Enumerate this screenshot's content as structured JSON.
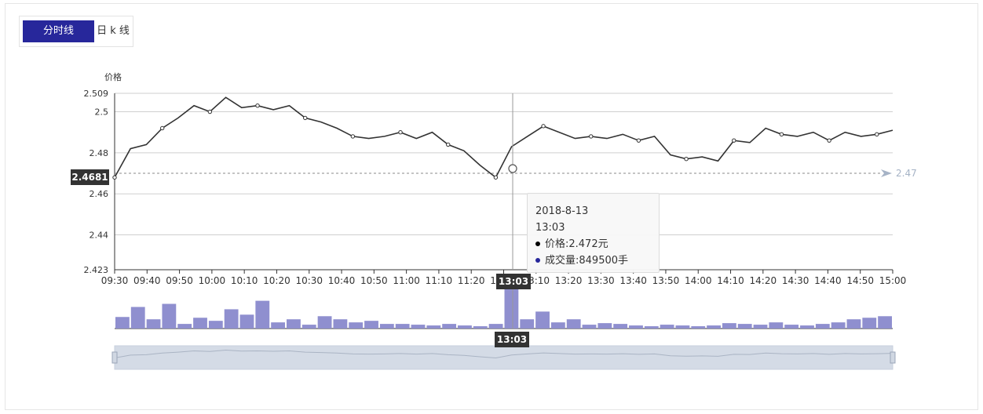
{
  "tabs": [
    {
      "label": "分时线",
      "active": true
    },
    {
      "label": "日 k 线",
      "active": false
    }
  ],
  "colors": {
    "accent": "#27279b",
    "line": "#333333",
    "volume": "#8f8fcf",
    "mark_line": "#a6b3c6",
    "zoom_fill": "#d4dbe6"
  },
  "tooltip": {
    "date": "2018-8-13",
    "time": "13:03",
    "price_label": "价格:2.472元",
    "volume_label": "成交量:849500手",
    "price_dot_color": "#000000",
    "volume_dot_color": "#27279b"
  },
  "axis_pointer": {
    "x_label": "13:03",
    "y_label": "2.4681"
  },
  "chart_data": {
    "type": "line",
    "ylabel": "价格",
    "y_ticks": [
      "2.509",
      "2.5",
      "2.48",
      "2.46",
      "2.44",
      "2.423"
    ],
    "ylim": [
      2.423,
      2.509
    ],
    "x_ticks": [
      "09:30",
      "09:40",
      "09:50",
      "10:00",
      "10:10",
      "10:20",
      "10:30",
      "10:40",
      "10:50",
      "11:00",
      "11:10",
      "11:20",
      "13:00",
      "13:10",
      "13:20",
      "13:30",
      "13:40",
      "13:50",
      "14:00",
      "14:10",
      "14:20",
      "14:30",
      "14:40",
      "14:50",
      "15:00"
    ],
    "mark_line": {
      "value": 2.47,
      "label": "2.47"
    },
    "grid": true,
    "series": [
      {
        "type": "line",
        "x": [
          "09:30",
          "09:35",
          "09:40",
          "09:45",
          "09:50",
          "09:55",
          "10:00",
          "10:05",
          "10:10",
          "10:15",
          "10:20",
          "10:25",
          "10:30",
          "10:35",
          "10:40",
          "10:45",
          "10:50",
          "10:55",
          "11:00",
          "11:05",
          "11:10",
          "11:15",
          "11:20",
          "11:25",
          "11:30",
          "13:00",
          "13:05",
          "13:10",
          "13:15",
          "13:20",
          "13:25",
          "13:30",
          "13:35",
          "13:40",
          "13:45",
          "13:50",
          "13:55",
          "14:00",
          "14:05",
          "14:10",
          "14:15",
          "14:20",
          "14:25",
          "14:30",
          "14:35",
          "14:40",
          "14:45",
          "14:50",
          "14:55",
          "15:00"
        ],
        "values": [
          2.468,
          2.482,
          2.484,
          2.492,
          2.497,
          2.503,
          2.5,
          2.507,
          2.502,
          2.503,
          2.501,
          2.503,
          2.497,
          2.495,
          2.492,
          2.488,
          2.487,
          2.488,
          2.49,
          2.487,
          2.49,
          2.484,
          2.481,
          2.474,
          2.468,
          2.483,
          2.488,
          2.493,
          2.49,
          2.487,
          2.488,
          2.487,
          2.489,
          2.486,
          2.488,
          2.479,
          2.477,
          2.478,
          2.476,
          2.486,
          2.485,
          2.492,
          2.489,
          2.488,
          2.49,
          2.486,
          2.49,
          2.488,
          2.489,
          2.491
        ]
      },
      {
        "type": "bar",
        "name": "成交量",
        "values": [
          15,
          28,
          12,
          32,
          6,
          14,
          10,
          25,
          18,
          36,
          8,
          12,
          5,
          16,
          12,
          8,
          10,
          6,
          6,
          5,
          4,
          6,
          4,
          3,
          6,
          60,
          12,
          22,
          8,
          12,
          5,
          7,
          6,
          4,
          3,
          5,
          4,
          3,
          4,
          7,
          6,
          5,
          8,
          5,
          4,
          6,
          8,
          12,
          14,
          16
        ]
      }
    ]
  }
}
